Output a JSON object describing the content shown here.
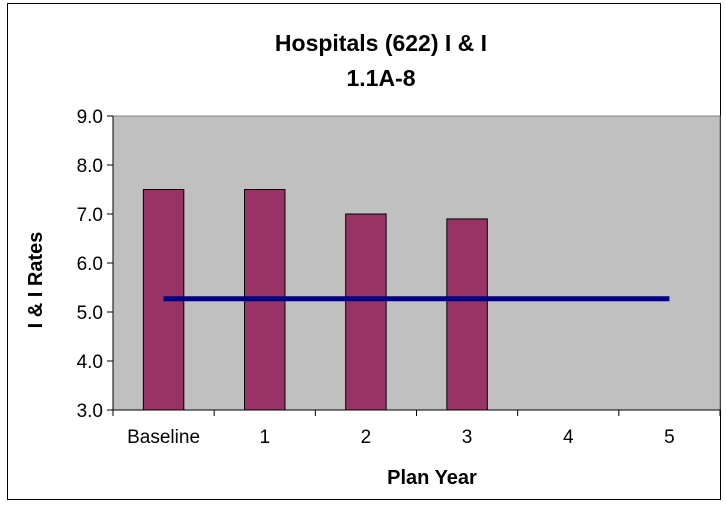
{
  "chart_data": {
    "type": "bar",
    "title": "Hospitals (622) I & I",
    "subtitle": "1.1A-8",
    "xlabel": "Plan Year",
    "ylabel": "I & I Rates",
    "categories": [
      "Baseline",
      "1",
      "2",
      "3",
      "4",
      "5"
    ],
    "series": [
      {
        "values": [
          7.5,
          7.5,
          7.0,
          6.9,
          null,
          null
        ]
      }
    ],
    "target_line": {
      "value": 5.27,
      "from": "Baseline",
      "to": "5"
    },
    "ylim": [
      3.0,
      9.0
    ],
    "yticks": [
      "3.0",
      "4.0",
      "5.0",
      "6.0",
      "7.0",
      "8.0",
      "9.0"
    ],
    "grid": false,
    "legend": "none",
    "colors": {
      "bar_fill": "#993366",
      "target_line": "#000080",
      "plot_bg": "#c0c0c0"
    }
  }
}
